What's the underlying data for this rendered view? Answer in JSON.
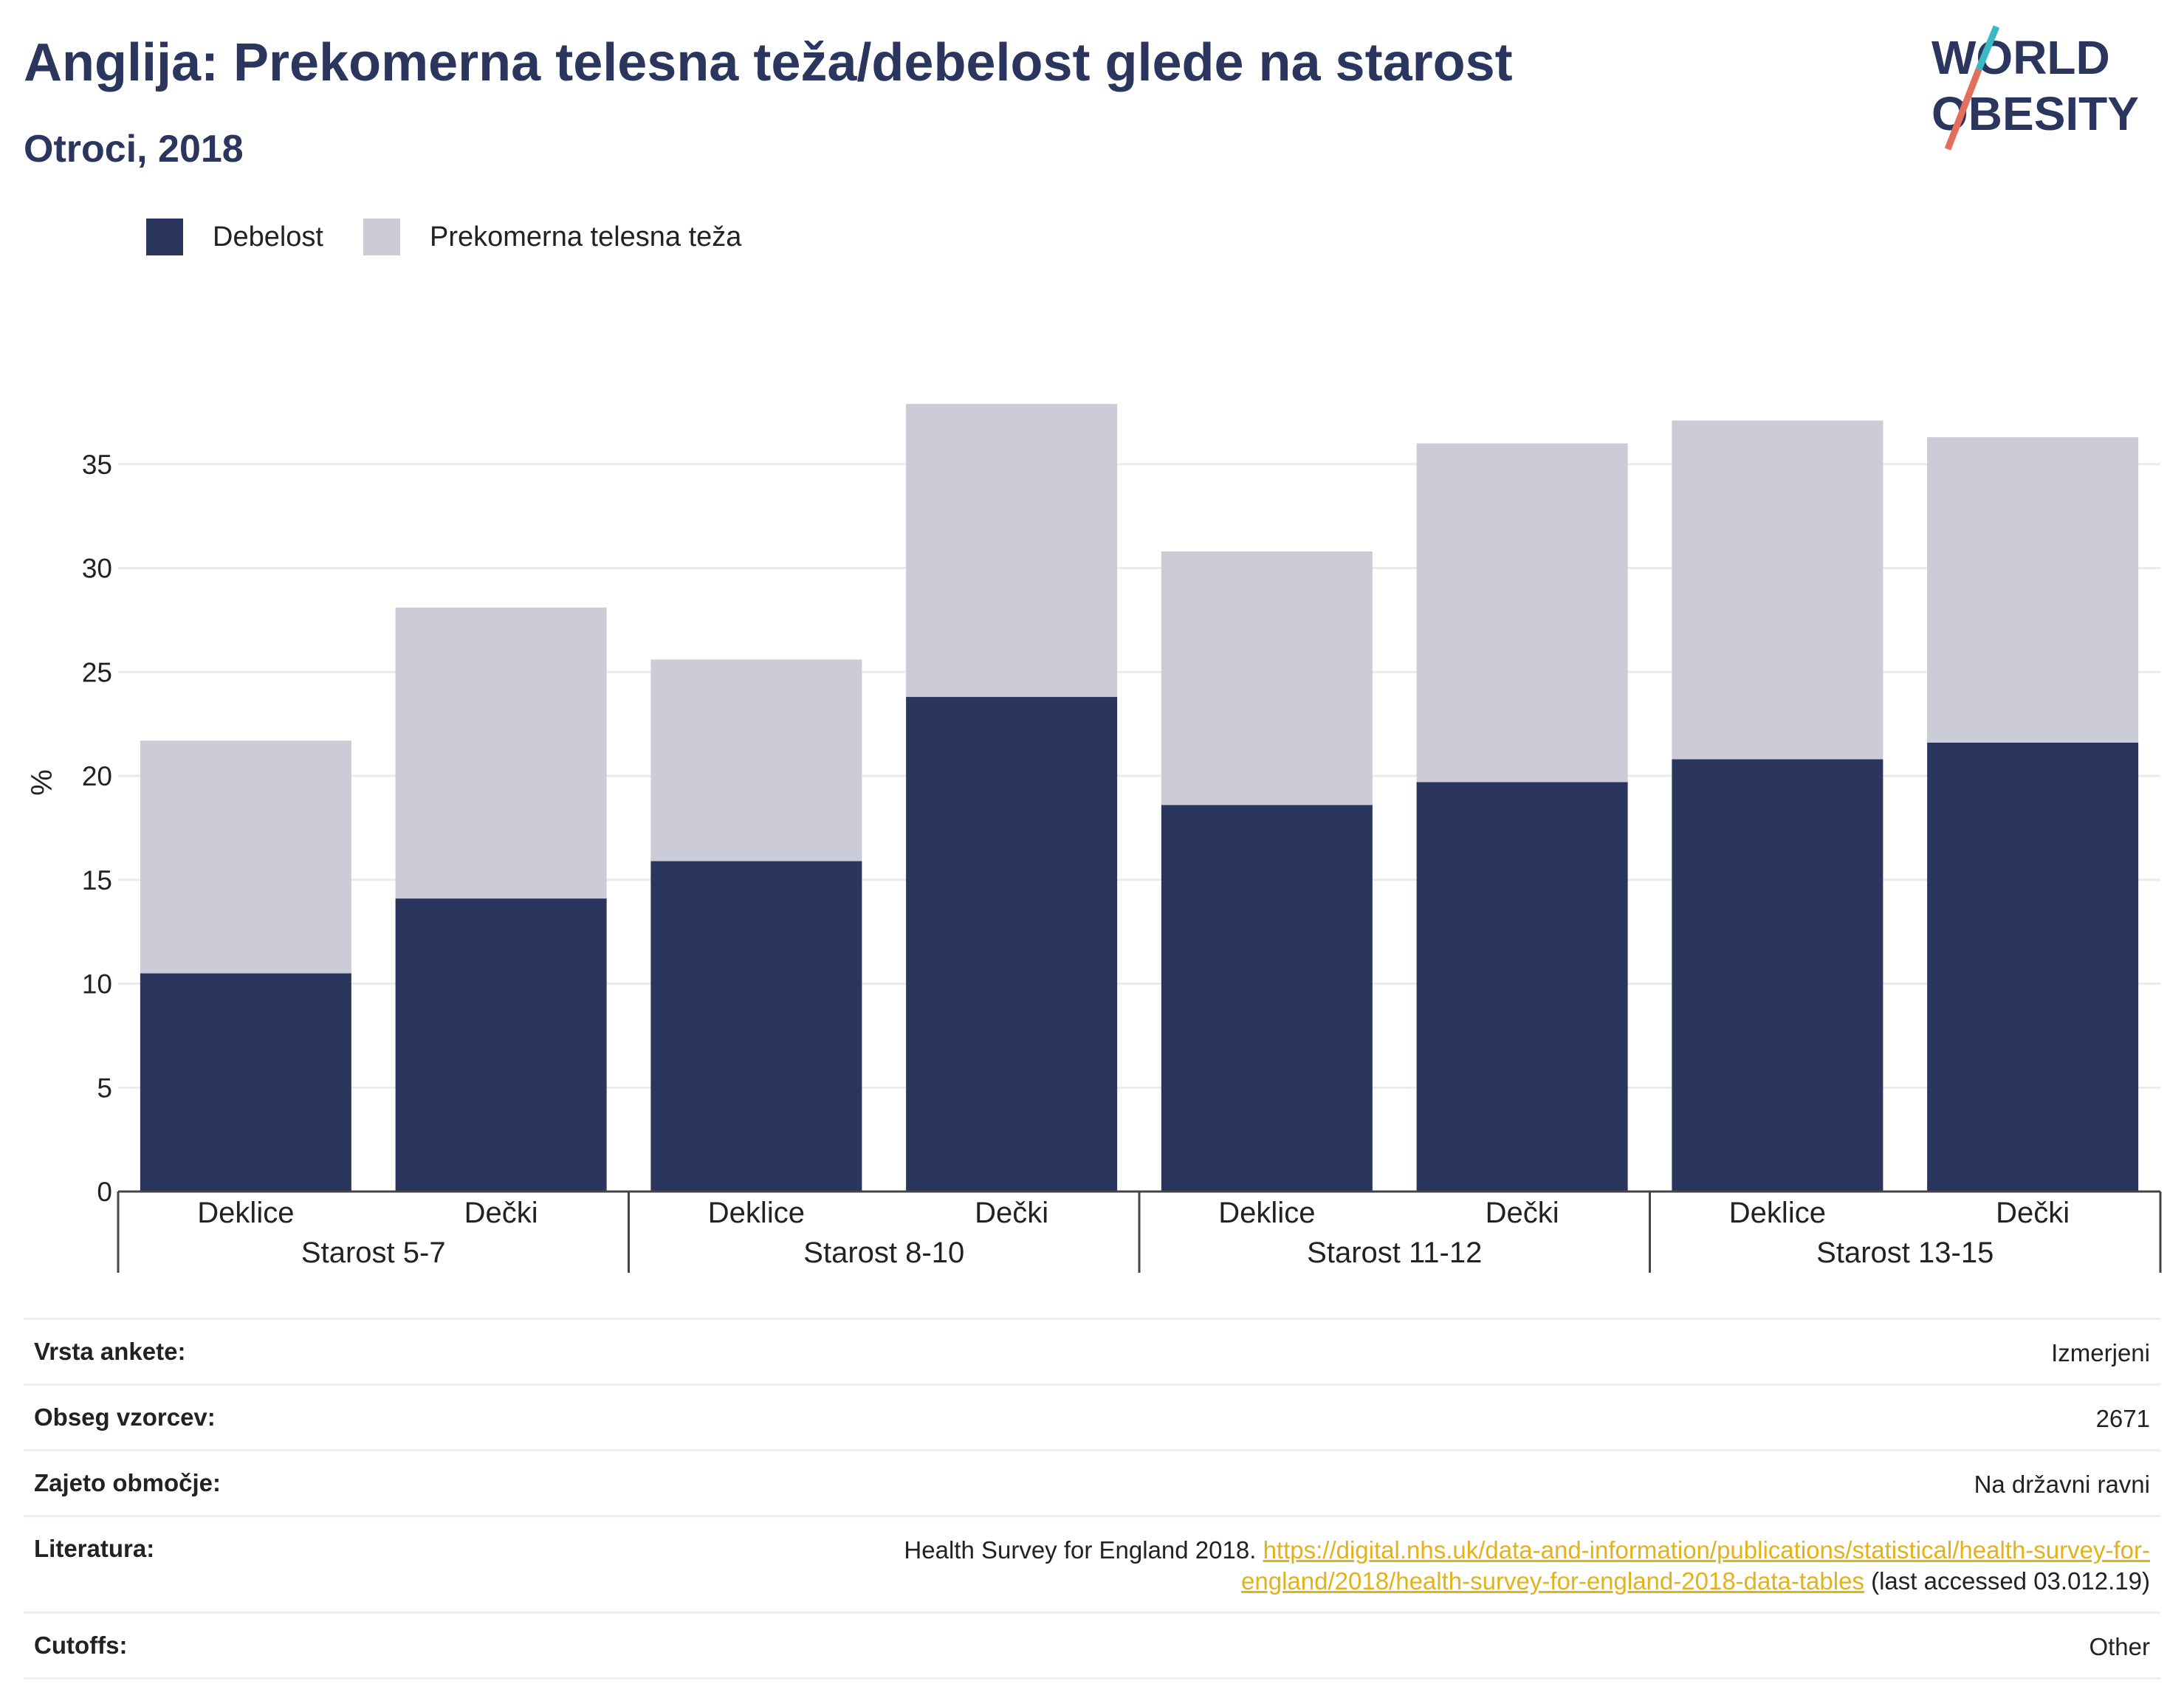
{
  "header": {
    "title": "Anglija: Prekomerna telesna teža/debelost glede na starost",
    "subtitle": "Otroci, 2018"
  },
  "logo": {
    "line1": "WORLD",
    "line2": "OBESITY"
  },
  "legend": [
    {
      "label": "Debelost",
      "color": "#2b365f"
    },
    {
      "label": "Prekomerna telesna teža",
      "color": "#cbccd8"
    }
  ],
  "chart_data": {
    "type": "bar",
    "stacked": true,
    "ylabel": "%",
    "ylim": [
      0,
      38
    ],
    "yticks": [
      0,
      5,
      10,
      15,
      20,
      25,
      30,
      35
    ],
    "grid": true,
    "legend_position": "top-left",
    "categories": [
      "Deklice",
      "Dečki",
      "Deklice",
      "Dečki",
      "Deklice",
      "Dečki",
      "Deklice",
      "Dečki"
    ],
    "groups": [
      {
        "label": "Starost 5-7",
        "size": 2
      },
      {
        "label": "Starost 8-10",
        "size": 2
      },
      {
        "label": "Starost 11-12",
        "size": 2
      },
      {
        "label": "Starost 13-15",
        "size": 2
      }
    ],
    "series": [
      {
        "name": "Debelost",
        "color": "#2b365f",
        "values": [
          10.5,
          14.1,
          15.9,
          23.8,
          18.6,
          19.7,
          20.8,
          21.6
        ]
      },
      {
        "name": "Prekomerna telesna teža",
        "color": "#cbccd8",
        "values": [
          11.2,
          14.0,
          9.7,
          14.1,
          12.2,
          16.3,
          16.3,
          14.7
        ]
      }
    ]
  },
  "info": {
    "survey_label": "Vrsta ankete:",
    "survey_value": "Izmerjeni",
    "sample_label": "Obseg vzorcev:",
    "sample_value": "2671",
    "area_label": "Zajeto območje:",
    "area_value": "Na državni ravni",
    "ref_label": "Literatura:",
    "ref_text": "Health Survey for England 2018.",
    "ref_link": "https://digital.nhs.uk/data-and-information/publications/statistical/health-survey-for-england/2018/health-survey-for-england-2018-data-tables",
    "ref_suffix": "(last accessed 03.012.19)",
    "cutoffs_label": "Cutoffs:",
    "cutoffs_value": "Other"
  }
}
